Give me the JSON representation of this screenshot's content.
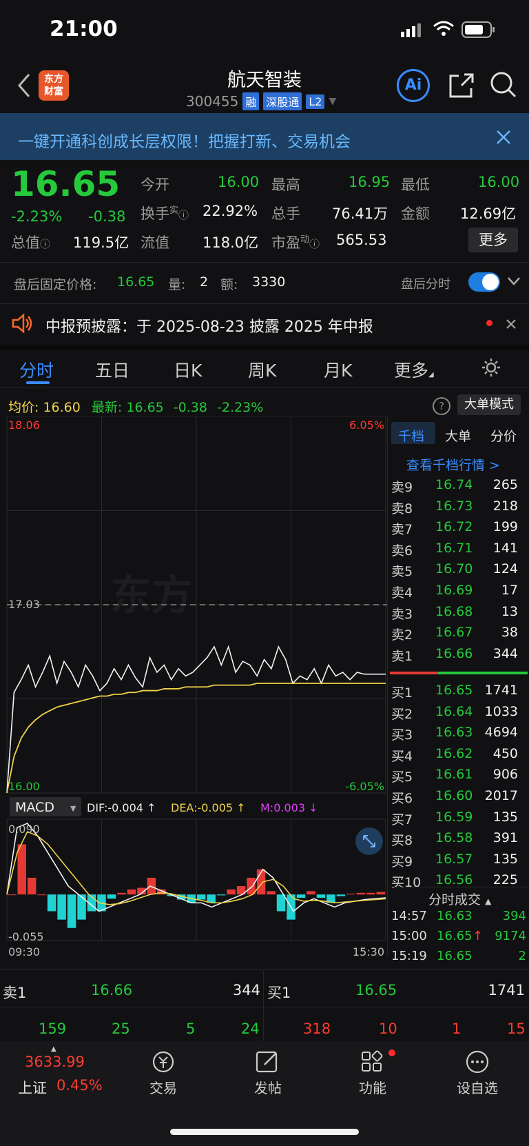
{
  "status_bar": {
    "time": "21:00"
  },
  "header": {
    "title": "航天智装",
    "code": "300455",
    "tags": [
      "融",
      "深股通",
      "L2"
    ],
    "logo_text_1": "东方",
    "logo_text_2": "财富",
    "ai_label": "Ai"
  },
  "banner": {
    "text": "一键开通科创成长层权限！把握打新、交易机会"
  },
  "quote": {
    "price": "16.65",
    "change_pct": "-2.23%",
    "change": "-0.38",
    "open_label": "今开",
    "open": "16.00",
    "high_label": "最高",
    "high": "16.95",
    "low_label": "最低",
    "low": "16.00",
    "turnover_label": "换手",
    "turnover_sup": "实",
    "turnover": "22.92%",
    "volume_label": "总手",
    "volume": "76.41万",
    "amount_label": "金额",
    "amount": "12.69亿",
    "mktcap_label": "总值",
    "mktcap": "119.5亿",
    "float_label": "流值",
    "float": "118.0亿",
    "pe_label": "市盈",
    "pe_sup": "动",
    "pe": "565.53",
    "more": "更多"
  },
  "after_hours": {
    "label": "盘后固定价格:",
    "price": "16.65",
    "qty_label": "量:",
    "qty": "2",
    "amt_label": "额:",
    "amt": "3330",
    "timeshare_label": "盘后分时"
  },
  "notice": {
    "text": "中报预披露：于 2025-08-23 披露 2025 年中报"
  },
  "tabs": [
    "分时",
    "五日",
    "日K",
    "周K",
    "月K",
    "更多"
  ],
  "chart_header": {
    "avg_label": "均价:",
    "avg": "16.60",
    "latest_label": "最新:",
    "latest": "16.65",
    "change": "-0.38",
    "change_pct": "-2.23%",
    "mode_button": "大单模式"
  },
  "chart_data": {
    "type": "line",
    "title": "",
    "y_top": "18.06",
    "y_mid": "17.03",
    "y_bottom": "16.00",
    "pct_top": "6.05%",
    "pct_bottom": "-6.05%",
    "ylim": [
      16.0,
      18.06
    ],
    "prev_close": 17.03,
    "x_start": "09:30",
    "x_end": "15:30",
    "series": [
      {
        "values": [
          16.0,
          16.55,
          16.62,
          16.7,
          16.58,
          16.66,
          16.75,
          16.6,
          16.72,
          16.66,
          16.58,
          16.7,
          16.64,
          16.56,
          16.6,
          16.68,
          16.62,
          16.7,
          16.63,
          16.58,
          16.74,
          16.66,
          16.7,
          16.62,
          16.68,
          16.64,
          16.66,
          16.7,
          16.74,
          16.8,
          16.7,
          16.8,
          16.66,
          16.72,
          16.7,
          16.64,
          16.73,
          16.68,
          16.8,
          16.73,
          16.6,
          16.64,
          16.62,
          16.68,
          16.6,
          16.7,
          16.64,
          16.66,
          16.62,
          16.66,
          16.65,
          16.65,
          16.65,
          16.65
        ]
      },
      {
        "name": "均价",
        "values": [
          16.0,
          16.2,
          16.3,
          16.36,
          16.4,
          16.43,
          16.45,
          16.47,
          16.48,
          16.49,
          16.5,
          16.51,
          16.52,
          16.53,
          16.53,
          16.54,
          16.54,
          16.55,
          16.55,
          16.56,
          16.56,
          16.56,
          16.57,
          16.57,
          16.57,
          16.58,
          16.58,
          16.58,
          16.58,
          16.59,
          16.59,
          16.59,
          16.59,
          16.59,
          16.59,
          16.6,
          16.6,
          16.6,
          16.6,
          16.6,
          16.6,
          16.6,
          16.6,
          16.6,
          16.6,
          16.6,
          16.6,
          16.6,
          16.6,
          16.6,
          16.6,
          16.6,
          16.6,
          16.6
        ]
      }
    ],
    "macd": {
      "label": "MACD",
      "dif": "DIF:-0.004 ↑",
      "dea": "DEA:-0.005 ↑",
      "m": "M:0.003 ↓",
      "top": "0.090",
      "bottom": "-0.055",
      "ylim": [
        -0.055,
        0.09
      ],
      "dif_values": [
        0.0,
        0.08,
        0.085,
        0.07,
        0.05,
        0.03,
        0.01,
        0.0,
        -0.01,
        -0.02,
        -0.015,
        -0.01,
        -0.005,
        0.0,
        0.01,
        0.005,
        0.0,
        -0.005,
        -0.01,
        -0.01,
        -0.015,
        -0.01,
        -0.005,
        0.0,
        0.01,
        0.03,
        0.02,
        0.0,
        -0.02,
        -0.01,
        -0.005,
        -0.01,
        -0.015,
        -0.01,
        -0.008,
        -0.006,
        -0.005,
        -0.004
      ],
      "dea_values": [
        0.0,
        0.05,
        0.075,
        0.07,
        0.06,
        0.045,
        0.03,
        0.015,
        0.0,
        -0.01,
        -0.012,
        -0.011,
        -0.008,
        -0.004,
        0.0,
        0.002,
        0.001,
        -0.002,
        -0.005,
        -0.007,
        -0.01,
        -0.01,
        -0.008,
        -0.005,
        0.0,
        0.015,
        0.018,
        0.01,
        -0.005,
        -0.008,
        -0.007,
        -0.008,
        -0.01,
        -0.009,
        -0.008,
        -0.007,
        -0.006,
        -0.005
      ],
      "hist_values": [
        0.0,
        0.06,
        0.02,
        0.0,
        -0.02,
        -0.03,
        -0.04,
        -0.03,
        -0.02,
        -0.02,
        -0.005,
        0.002,
        0.006,
        0.008,
        0.02,
        0.006,
        -0.002,
        -0.006,
        -0.01,
        -0.006,
        -0.01,
        -0.001,
        0.006,
        0.01,
        0.02,
        0.03,
        0.004,
        -0.02,
        -0.03,
        -0.004,
        0.004,
        -0.004,
        -0.01,
        -0.002,
        0.001,
        0.002,
        0.002,
        0.003
      ]
    }
  },
  "orderbook": {
    "tabs": [
      "千档",
      "大单",
      "分价"
    ],
    "link": "查看千档行情 >",
    "asks": [
      {
        "label": "卖9",
        "price": "16.74",
        "vol": "265"
      },
      {
        "label": "卖8",
        "price": "16.73",
        "vol": "218"
      },
      {
        "label": "卖7",
        "price": "16.72",
        "vol": "199"
      },
      {
        "label": "卖6",
        "price": "16.71",
        "vol": "141"
      },
      {
        "label": "卖5",
        "price": "16.70",
        "vol": "124"
      },
      {
        "label": "卖4",
        "price": "16.69",
        "vol": "17"
      },
      {
        "label": "卖3",
        "price": "16.68",
        "vol": "13"
      },
      {
        "label": "卖2",
        "price": "16.67",
        "vol": "38"
      },
      {
        "label": "卖1",
        "price": "16.66",
        "vol": "344"
      }
    ],
    "bids": [
      {
        "label": "买1",
        "price": "16.65",
        "vol": "1741"
      },
      {
        "label": "买2",
        "price": "16.64",
        "vol": "1033"
      },
      {
        "label": "买3",
        "price": "16.63",
        "vol": "4694"
      },
      {
        "label": "买4",
        "price": "16.62",
        "vol": "450"
      },
      {
        "label": "买5",
        "price": "16.61",
        "vol": "906"
      },
      {
        "label": "买6",
        "price": "16.60",
        "vol": "2017"
      },
      {
        "label": "买7",
        "price": "16.59",
        "vol": "135"
      },
      {
        "label": "买8",
        "price": "16.58",
        "vol": "391"
      },
      {
        "label": "买9",
        "price": "16.57",
        "vol": "135"
      },
      {
        "label": "买10",
        "price": "16.56",
        "vol": "225"
      }
    ],
    "trades_header": "分时成交",
    "trades": [
      {
        "time": "14:57",
        "price": "16.63",
        "vol": "394",
        "arrow": ""
      },
      {
        "time": "15:00",
        "price": "16.65",
        "vol": "9174",
        "arrow": "↑"
      },
      {
        "time": "15:19",
        "price": "16.65",
        "vol": "2",
        "arrow": ""
      }
    ]
  },
  "summary": {
    "sell_label": "卖1",
    "sell_price": "16.66",
    "sell_vol": "344",
    "buy_label": "买1",
    "buy_price": "16.65",
    "buy_vol": "1741",
    "green_nums": [
      "159",
      "25",
      "5",
      "24"
    ],
    "red_nums": [
      "318",
      "10",
      "1",
      "15"
    ]
  },
  "bottom_nav": {
    "index_value": "3633.99",
    "index_name": "上证",
    "index_pct": "0.45%",
    "items": [
      "交易",
      "发帖",
      "功能",
      "设自选"
    ]
  },
  "colors": {
    "up": "#ff3b30",
    "down": "#25c93b",
    "avg_line": "#f0d34a",
    "accent": "#3a8bff"
  }
}
